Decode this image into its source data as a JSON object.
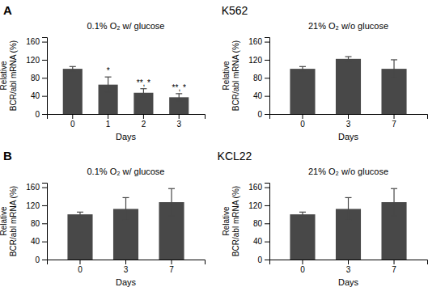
{
  "rows": [
    {
      "label": "A",
      "title": "K562"
    },
    {
      "label": "B",
      "title": "KCL22"
    }
  ],
  "chart_data": [
    {
      "type": "bar",
      "title": "0.1% O₂ w/ glucose",
      "xlabel": "Days",
      "ylabel": "Relative\nBCR/abl mRNA (%)",
      "categories": [
        "0",
        "1",
        "2",
        "3"
      ],
      "values": [
        100,
        65,
        47,
        37
      ],
      "errors": [
        5,
        17,
        9,
        8
      ],
      "annotations": [
        null,
        "*",
        "**, *",
        "**, *"
      ],
      "color": "#484848",
      "ylim": [
        0,
        170
      ],
      "yticks": [
        0,
        40,
        80,
        120,
        160
      ]
    },
    {
      "type": "bar",
      "title": "21% O₂ w/o glucose",
      "xlabel": "Days",
      "ylabel": "Relative\nBCR/abl mRNA (%)",
      "categories": [
        "0",
        "3",
        "7"
      ],
      "values": [
        100,
        122,
        100
      ],
      "errors": [
        5,
        5,
        20
      ],
      "color": "#484848",
      "ylim": [
        0,
        170
      ],
      "yticks": [
        0,
        40,
        80,
        120,
        160
      ]
    },
    {
      "type": "bar",
      "title": "0.1% O₂ w/ glucose",
      "xlabel": "Days",
      "ylabel": "Relative\nBCR/abl mRNA (%)",
      "categories": [
        "0",
        "3",
        "7"
      ],
      "values": [
        100,
        112,
        127
      ],
      "errors": [
        5,
        25,
        30
      ],
      "color": "#484848",
      "ylim": [
        0,
        170
      ],
      "yticks": [
        0,
        40,
        80,
        120,
        160
      ]
    },
    {
      "type": "bar",
      "title": "21% O₂ w/o glucose",
      "xlabel": "Days",
      "ylabel": "Relative\nBCR/abl mRNA (%)",
      "categories": [
        "0",
        "3",
        "7"
      ],
      "values": [
        100,
        112,
        127
      ],
      "errors": [
        5,
        25,
        30
      ],
      "color": "#484848",
      "ylim": [
        0,
        170
      ],
      "yticks": [
        0,
        40,
        80,
        120,
        160
      ]
    }
  ]
}
